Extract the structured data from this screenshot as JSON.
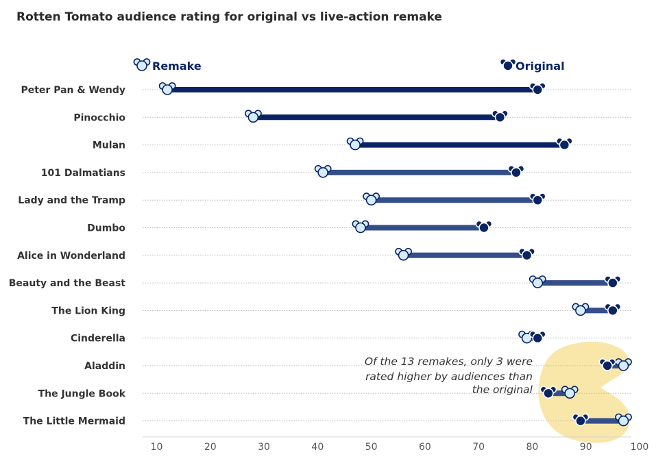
{
  "chart_data": {
    "type": "dumbbell",
    "title": "Rotten Tomato audience rating for original vs live-action remake",
    "legend": {
      "remake": "Remake",
      "original": "Original",
      "placement": "top"
    },
    "xticks": [
      10,
      20,
      30,
      40,
      50,
      60,
      70,
      80,
      90,
      100
    ],
    "xlim": [
      6,
      102
    ],
    "categories": [
      "Peter Pan & Wendy",
      "Pinocchio",
      "Mulan",
      "101 Dalmatians",
      "Lady and the Tramp",
      "Dumbo",
      "Alice in Wonderland",
      "Beauty and the Beast",
      "The Lion King",
      "Cinderella",
      "Aladdin",
      "The Jungle Book",
      "The Little Mermaid"
    ],
    "series": [
      {
        "name": "Remake",
        "values": [
          12,
          28,
          47,
          41,
          50,
          48,
          56,
          81,
          89,
          79,
          97,
          87,
          97
        ]
      },
      {
        "name": "Original",
        "values": [
          81,
          74,
          86,
          77,
          81,
          71,
          79,
          95,
          95,
          81,
          94,
          83,
          89
        ]
      }
    ],
    "annotation": {
      "lines": [
        "Of the 13 remakes, only 3 were",
        "rated higher by audiences than",
        "the original"
      ]
    },
    "colors": {
      "original": "#0a2463",
      "remake_fill": "#d6ecfb",
      "remake_bar": "#344e8a",
      "highlight": "#f9e7a9",
      "grid": "#b8b8b8",
      "axis": "#d4d4d4"
    }
  }
}
